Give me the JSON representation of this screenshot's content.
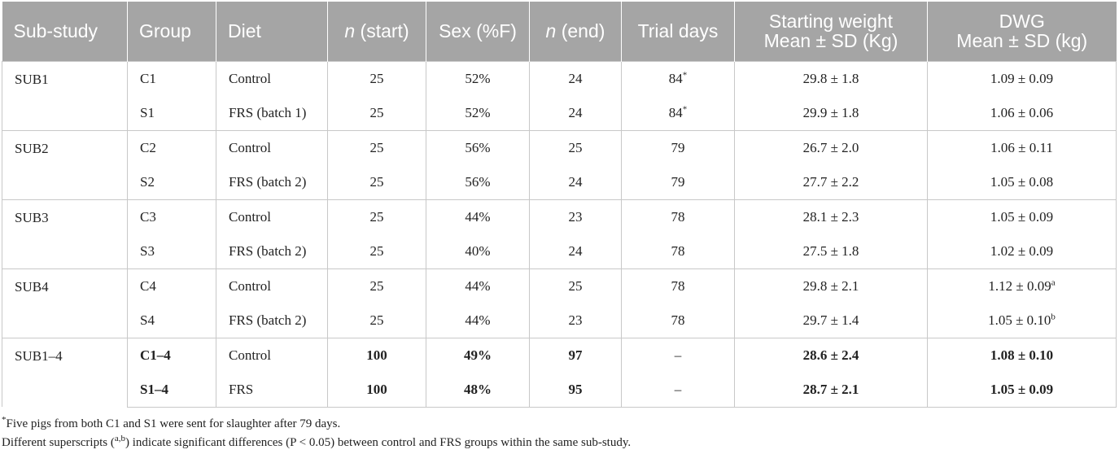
{
  "headers": {
    "substudy": "Sub-study",
    "group": "Group",
    "diet": "Diet",
    "n_start_italic": "n",
    "n_start_rest": " (start)",
    "sex": "Sex (%F)",
    "n_end_italic": "n",
    "n_end_rest": " (end)",
    "trial_days": "Trial days",
    "weight_line1": "Starting weight",
    "weight_line2": "Mean ± SD (Kg)",
    "dwg_line1": "DWG",
    "dwg_line2": "Mean ± SD (kg)"
  },
  "substudies": [
    "SUB1",
    "SUB2",
    "SUB3",
    "SUB4",
    "SUB1–4"
  ],
  "rows": [
    {
      "group": "C1",
      "diet": "Control",
      "n_start": "25",
      "sex": "52%",
      "n_end": "24",
      "trial_days": "84",
      "trial_days_mark": "*",
      "weight": "29.8 ± 1.8",
      "dwg": "1.09 ± 0.09",
      "dwg_sup": ""
    },
    {
      "group": "S1",
      "diet": "FRS (batch 1)",
      "n_start": "25",
      "sex": "52%",
      "n_end": "24",
      "trial_days": "84",
      "trial_days_mark": "*",
      "weight": "29.9 ± 1.8",
      "dwg": "1.06 ± 0.06",
      "dwg_sup": ""
    },
    {
      "group": "C2",
      "diet": "Control",
      "n_start": "25",
      "sex": "56%",
      "n_end": "25",
      "trial_days": "79",
      "trial_days_mark": "",
      "weight": "26.7 ± 2.0",
      "dwg": "1.06 ± 0.11",
      "dwg_sup": ""
    },
    {
      "group": "S2",
      "diet": "FRS (batch 2)",
      "n_start": "25",
      "sex": "56%",
      "n_end": "24",
      "trial_days": "79",
      "trial_days_mark": "",
      "weight": "27.7 ± 2.2",
      "dwg": "1.05 ± 0.08",
      "dwg_sup": ""
    },
    {
      "group": "C3",
      "diet": "Control",
      "n_start": "25",
      "sex": "44%",
      "n_end": "23",
      "trial_days": "78",
      "trial_days_mark": "",
      "weight": "28.1 ± 2.3",
      "dwg": "1.05 ± 0.09",
      "dwg_sup": ""
    },
    {
      "group": "S3",
      "diet": "FRS (batch 2)",
      "n_start": "25",
      "sex": "40%",
      "n_end": "24",
      "trial_days": "78",
      "trial_days_mark": "",
      "weight": "27.5 ± 1.8",
      "dwg": "1.02 ± 0.09",
      "dwg_sup": ""
    },
    {
      "group": "C4",
      "diet": "Control",
      "n_start": "25",
      "sex": "44%",
      "n_end": "25",
      "trial_days": "78",
      "trial_days_mark": "",
      "weight": "29.8 ± 2.1",
      "dwg": "1.12 ± 0.09",
      "dwg_sup": "a"
    },
    {
      "group": "S4",
      "diet": "FRS (batch 2)",
      "n_start": "25",
      "sex": "44%",
      "n_end": "23",
      "trial_days": "78",
      "trial_days_mark": "",
      "weight": "29.7 ± 1.4",
      "dwg": "1.05 ± 0.10",
      "dwg_sup": "b"
    },
    {
      "group": "C1–4",
      "diet": "Control",
      "n_start": "100",
      "sex": "49%",
      "n_end": "97",
      "trial_days": "–",
      "trial_days_mark": "",
      "weight": "28.6 ± 2.4",
      "dwg": "1.08 ± 0.10",
      "dwg_sup": ""
    },
    {
      "group": "S1–4",
      "diet": "FRS",
      "n_start": "100",
      "sex": "48%",
      "n_end": "95",
      "trial_days": "–",
      "trial_days_mark": "",
      "weight": "28.7 ± 2.1",
      "dwg": "1.05 ± 0.09",
      "dwg_sup": ""
    }
  ],
  "footnotes": {
    "note1_mark": "*",
    "note1_text": "Five pigs from both C1 and S1 were sent for slaughter after 79 days.",
    "note2_pre": "Different superscripts (",
    "note2_sup": "a,b",
    "note2_post": ") indicate significant differences (P < 0.05) between control and FRS groups within the same sub-study."
  }
}
